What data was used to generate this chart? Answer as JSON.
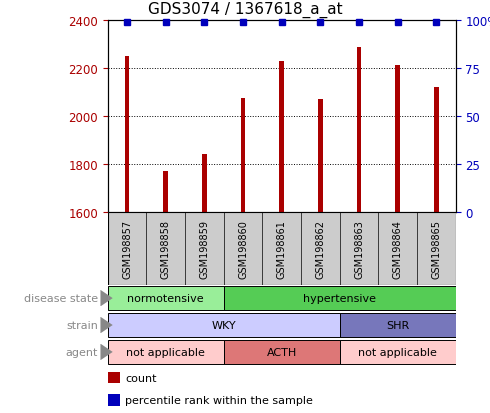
{
  "title": "GDS3074 / 1367618_a_at",
  "samples": [
    "GSM198857",
    "GSM198858",
    "GSM198859",
    "GSM198860",
    "GSM198861",
    "GSM198862",
    "GSM198863",
    "GSM198864",
    "GSM198865"
  ],
  "counts": [
    2250,
    1770,
    1840,
    2075,
    2230,
    2070,
    2285,
    2210,
    2120
  ],
  "percentiles": [
    99,
    99,
    99,
    99,
    99,
    99,
    99,
    99,
    99
  ],
  "ylim_left": [
    1600,
    2400
  ],
  "ylim_right": [
    0,
    100
  ],
  "yticks_left": [
    1600,
    1800,
    2000,
    2200,
    2400
  ],
  "yticks_right": [
    0,
    25,
    50,
    75,
    100
  ],
  "bar_color": "#aa0000",
  "percentile_color": "#0000bb",
  "disease_state_colors": {
    "normotensive": "#99ee99",
    "hypertensive": "#55cc55"
  },
  "strain_colors": {
    "WKY": "#ccccff",
    "SHR": "#7777bb"
  },
  "agent_colors": {
    "not_applicable": "#ffcccc",
    "ACTH": "#dd7777"
  },
  "bg_color": "#ffffff",
  "tick_label_bg": "#cccccc",
  "ann_label_color": "#888888"
}
